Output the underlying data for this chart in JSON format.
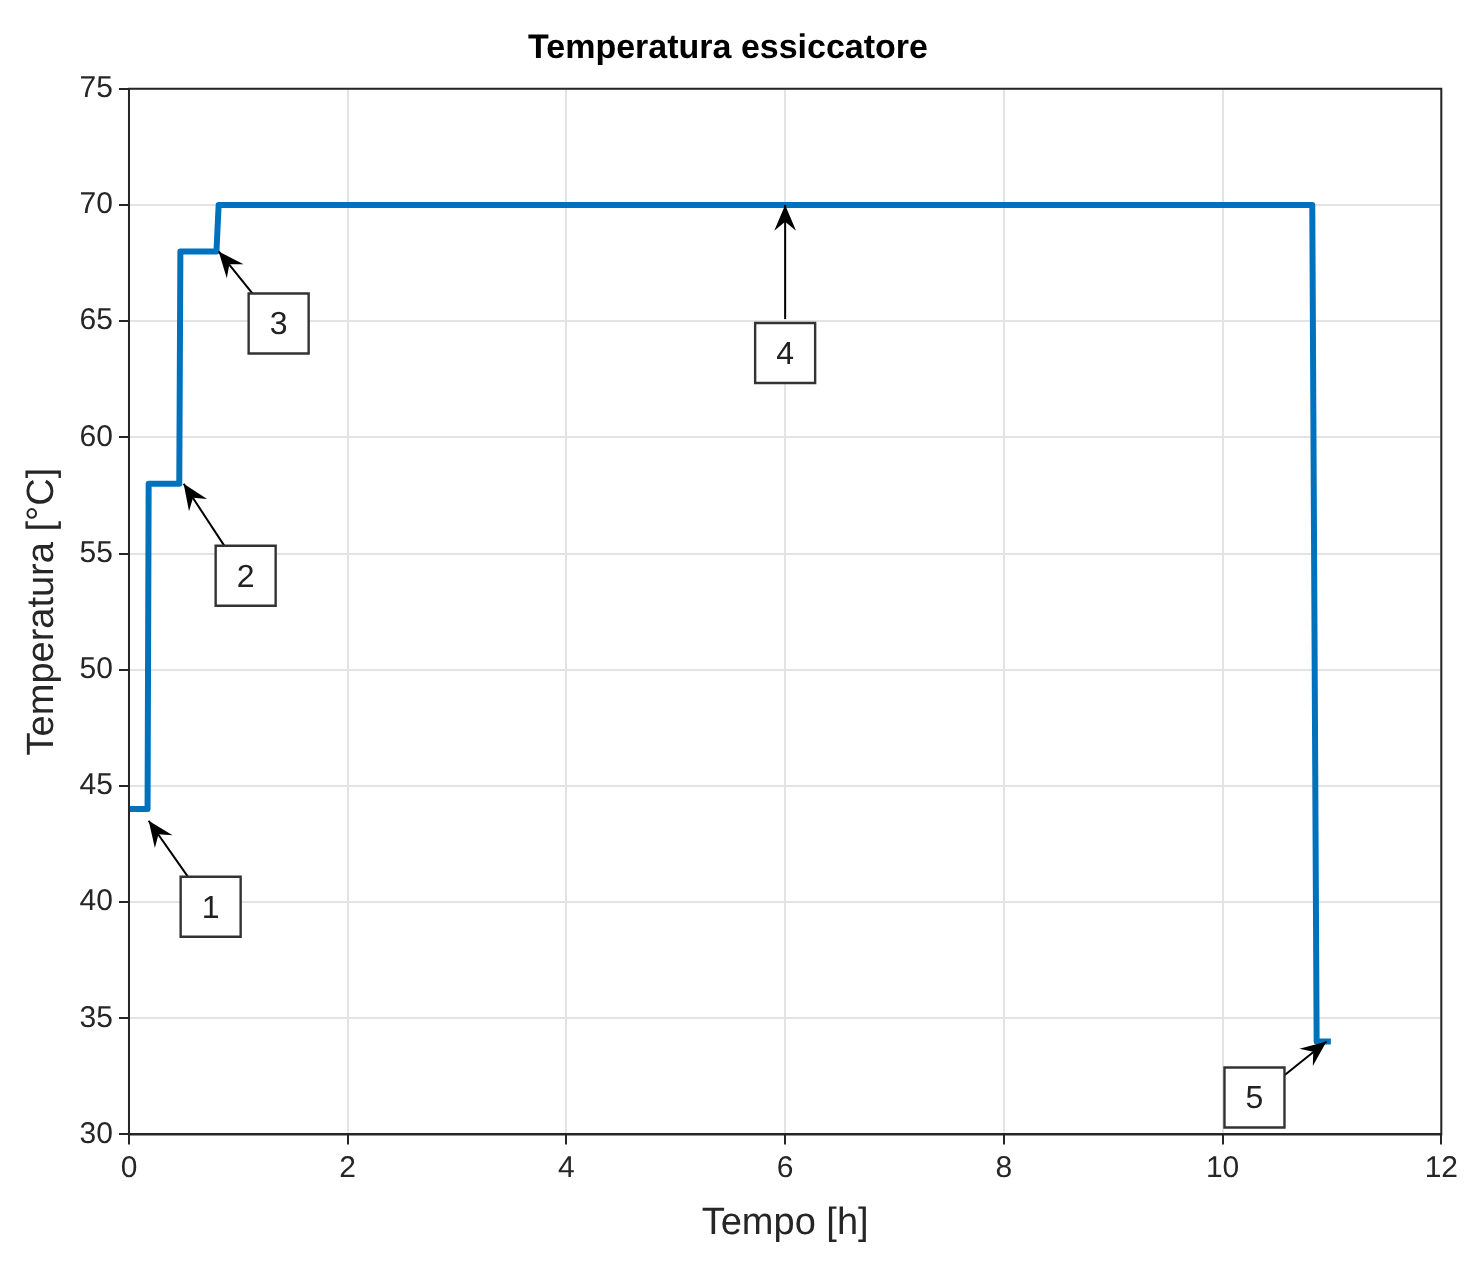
{
  "chart_data": {
    "type": "line",
    "title": "Temperatura essiccatore",
    "xlabel": "Tempo [h]",
    "ylabel": "Temperatura [°C]",
    "x": [
      0,
      0.17,
      0.18,
      0.46,
      0.47,
      0.8,
      0.82,
      10.82,
      10.86,
      10.99
    ],
    "series": [
      {
        "color": "#0072bd",
        "values": [
          44,
          44,
          58,
          58,
          68,
          68,
          70,
          70,
          34,
          34
        ]
      }
    ],
    "xlim": [
      0,
      12
    ],
    "xticks": [
      0,
      2,
      4,
      6,
      8,
      10,
      12
    ],
    "ylim": [
      30,
      75
    ],
    "yticks": [
      30,
      35,
      40,
      45,
      50,
      55,
      60,
      65,
      70,
      75
    ],
    "grid": true,
    "legend": false,
    "marker": "none",
    "line_style": "solid",
    "annotations": [
      {
        "text": "1",
        "x": 0.18,
        "y": 43.5
      },
      {
        "text": "2",
        "x": 0.5,
        "y": 58
      },
      {
        "text": "3",
        "x": 0.82,
        "y": 68
      },
      {
        "text": "4",
        "x": 6,
        "y": 70
      },
      {
        "text": "5",
        "x": 10.95,
        "y": 34
      }
    ]
  }
}
